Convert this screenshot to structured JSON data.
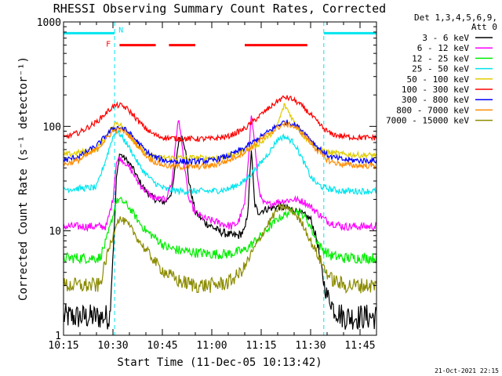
{
  "chart_data": {
    "type": "line",
    "title": "RHESSI Observing Summary Count Rates, Corrected",
    "xlabel": "Start Time (11-Dec-05 10:13:42)",
    "ylabel": "Corrected Count Rate (s⁻¹ detector⁻¹)",
    "x_unit": "minutes after 10:00 UT",
    "xlim": [
      15,
      110
    ],
    "ylim": [
      1,
      1000
    ],
    "yscale": "log",
    "x_ticks": [
      {
        "label": "10:15",
        "value": 15
      },
      {
        "label": "10:30",
        "value": 30
      },
      {
        "label": "10:45",
        "value": 45
      },
      {
        "label": "11:00",
        "value": 60
      },
      {
        "label": "11:15",
        "value": 75
      },
      {
        "label": "11:30",
        "value": 90
      },
      {
        "label": "11:45",
        "value": 105
      }
    ],
    "y_ticks": [
      {
        "label": "1",
        "value": 1
      },
      {
        "label": "10",
        "value": 10
      },
      {
        "label": "100",
        "value": 100
      },
      {
        "label": "1000",
        "value": 1000
      }
    ],
    "legend_header": [
      "Det 1,3,4,5,6,9,",
      "Att 0"
    ],
    "legend_placement": "right",
    "footer_timestamp": "21-Oct-2021 22:15",
    "flags": {
      "night_label": "N",
      "flare_label": "F",
      "night_color": "#00e5ee",
      "flare_color": "#ff0000",
      "night_bars": [
        [
          15,
          30.5
        ],
        [
          94,
          110
        ]
      ],
      "flare_bars": [
        [
          32,
          43
        ],
        [
          47,
          55
        ],
        [
          70,
          89
        ]
      ],
      "night_bar_value": 780,
      "flare_bar_value": 600,
      "saa_lines": [
        30.5,
        94
      ]
    },
    "series": [
      {
        "name": "3 - 6 keV",
        "color": "#000000",
        "x": [
          15,
          29,
          30.5,
          31,
          32,
          34,
          36,
          38,
          40,
          42,
          44,
          46,
          48,
          50,
          51,
          52,
          53,
          55,
          58,
          60,
          62,
          64,
          66,
          68,
          70,
          71,
          72,
          73,
          74,
          76,
          80,
          85,
          90,
          92,
          93,
          94,
          95,
          96,
          97,
          100,
          105,
          110
        ],
        "y": [
          1.5,
          1.5,
          12,
          30,
          55,
          48,
          40,
          30,
          24,
          21,
          19,
          19,
          24,
          75,
          82,
          60,
          30,
          15,
          12,
          11,
          10,
          9.5,
          9,
          9,
          10,
          16,
          60,
          18,
          15,
          16,
          17,
          16,
          13,
          8,
          5,
          3.2,
          2.4,
          2.2,
          1.8,
          1.5,
          1.5,
          1.5
        ]
      },
      {
        "name": "6 - 12 keV",
        "color": "#ff00ff",
        "x": [
          15,
          28,
          30,
          31,
          32,
          34,
          36,
          38,
          40,
          42,
          44,
          46,
          48,
          49,
          50,
          51,
          52,
          53,
          55,
          58,
          60,
          62,
          64,
          66,
          68,
          70,
          71,
          72,
          73,
          74,
          75,
          76,
          78,
          80,
          85,
          88,
          90,
          92,
          93,
          94,
          96,
          100,
          105,
          110
        ],
        "y": [
          11,
          11,
          20,
          45,
          50,
          44,
          36,
          28,
          24,
          21,
          20,
          20,
          30,
          70,
          120,
          65,
          35,
          20,
          15,
          13,
          12.5,
          12,
          11.5,
          11,
          12,
          18,
          45,
          130,
          70,
          30,
          20,
          18,
          18,
          19,
          20,
          19,
          17,
          15,
          14,
          13,
          12,
          11,
          11,
          11
        ]
      },
      {
        "name": "12 - 25 keV",
        "color": "#00ee00",
        "x": [
          15,
          26,
          28,
          30,
          31,
          32,
          34,
          36,
          38,
          40,
          42,
          44,
          46,
          50,
          55,
          60,
          65,
          70,
          75,
          80,
          85,
          88,
          90,
          91,
          92,
          93,
          94,
          95,
          96,
          100,
          105,
          110
        ],
        "y": [
          5.5,
          5.5,
          8,
          14,
          19,
          20,
          18,
          15,
          12,
          10,
          9,
          8,
          7,
          6.5,
          6.2,
          6,
          6,
          6.5,
          9,
          13,
          16,
          14,
          11,
          9,
          8,
          7,
          6.5,
          6.2,
          5.8,
          5.5,
          5.5,
          5.5
        ]
      },
      {
        "name": "25 - 50 keV",
        "color": "#00e5ee",
        "x": [
          15,
          25,
          28,
          30,
          31,
          32,
          34,
          36,
          38,
          40,
          42,
          44,
          46,
          50,
          55,
          60,
          65,
          70,
          75,
          78,
          80,
          82,
          85,
          88,
          90,
          92,
          94,
          96,
          100,
          105,
          110
        ],
        "y": [
          25,
          26,
          50,
          80,
          90,
          85,
          70,
          55,
          42,
          35,
          30,
          27,
          25,
          24,
          24,
          24,
          25,
          30,
          45,
          60,
          75,
          80,
          70,
          45,
          33,
          28,
          26,
          25,
          24,
          24,
          24
        ]
      },
      {
        "name": "50 - 100 keV",
        "color": "#e0cc00",
        "x": [
          15,
          25,
          28,
          30,
          31,
          32,
          34,
          36,
          38,
          40,
          42,
          44,
          46,
          50,
          55,
          60,
          65,
          70,
          75,
          78,
          80,
          82,
          83,
          85,
          88,
          90,
          92,
          94,
          96,
          100,
          105,
          110
        ],
        "y": [
          53,
          60,
          80,
          100,
          110,
          105,
          90,
          75,
          62,
          55,
          52,
          50,
          50,
          50,
          50,
          50,
          52,
          58,
          70,
          85,
          105,
          160,
          145,
          110,
          80,
          70,
          62,
          58,
          56,
          54,
          53,
          53
        ]
      },
      {
        "name": "100 - 300 keV",
        "color": "#ff0000",
        "x": [
          15,
          20,
          25,
          28,
          30,
          32,
          34,
          36,
          38,
          40,
          42,
          44,
          46,
          50,
          55,
          60,
          65,
          70,
          75,
          80,
          82,
          84,
          86,
          88,
          90,
          92,
          94,
          96,
          100,
          105,
          110
        ],
        "y": [
          78,
          88,
          110,
          135,
          155,
          160,
          150,
          130,
          110,
          95,
          85,
          80,
          78,
          76,
          76,
          76,
          80,
          95,
          130,
          175,
          190,
          185,
          170,
          150,
          130,
          110,
          95,
          85,
          80,
          78,
          78
        ]
      },
      {
        "name": "300 - 800 keV",
        "color": "#0000ff",
        "x": [
          15,
          20,
          25,
          28,
          30,
          32,
          34,
          36,
          38,
          40,
          42,
          44,
          46,
          50,
          55,
          60,
          65,
          70,
          75,
          80,
          82,
          84,
          86,
          88,
          90,
          92,
          94,
          96,
          100,
          105,
          110
        ],
        "y": [
          47,
          52,
          65,
          82,
          95,
          98,
          92,
          80,
          68,
          58,
          52,
          49,
          47,
          46,
          46,
          47,
          52,
          62,
          80,
          102,
          110,
          108,
          100,
          88,
          75,
          64,
          56,
          51,
          48,
          47,
          47
        ]
      },
      {
        "name": "800 - 7000 keV",
        "color": "#ff8c00",
        "x": [
          15,
          20,
          25,
          28,
          30,
          32,
          34,
          36,
          38,
          40,
          42,
          44,
          46,
          50,
          55,
          60,
          65,
          70,
          75,
          80,
          82,
          84,
          86,
          88,
          90,
          92,
          94,
          96,
          100,
          105,
          110
        ],
        "y": [
          43,
          48,
          60,
          76,
          90,
          93,
          87,
          75,
          63,
          53,
          47,
          44,
          42,
          41,
          41,
          42,
          47,
          57,
          75,
          97,
          105,
          103,
          95,
          83,
          70,
          59,
          51,
          46,
          43,
          42,
          42
        ]
      },
      {
        "name": "7000 - 15000 keV",
        "color": "#8b8b00",
        "x": [
          15,
          26,
          28,
          30,
          31,
          32,
          34,
          36,
          38,
          40,
          42,
          44,
          46,
          48,
          50,
          55,
          60,
          65,
          68,
          70,
          72,
          75,
          78,
          80,
          82,
          85,
          88,
          90,
          92,
          94,
          96,
          100,
          105,
          110
        ],
        "y": [
          3,
          3,
          5.5,
          9,
          12,
          13,
          12,
          10,
          8,
          6.5,
          5.5,
          4.5,
          4,
          3.6,
          3.3,
          3,
          3,
          3.2,
          3.8,
          4.5,
          6,
          9,
          13,
          16,
          17,
          15,
          11,
          8,
          6,
          4.5,
          3.5,
          3,
          3,
          3
        ]
      }
    ]
  }
}
